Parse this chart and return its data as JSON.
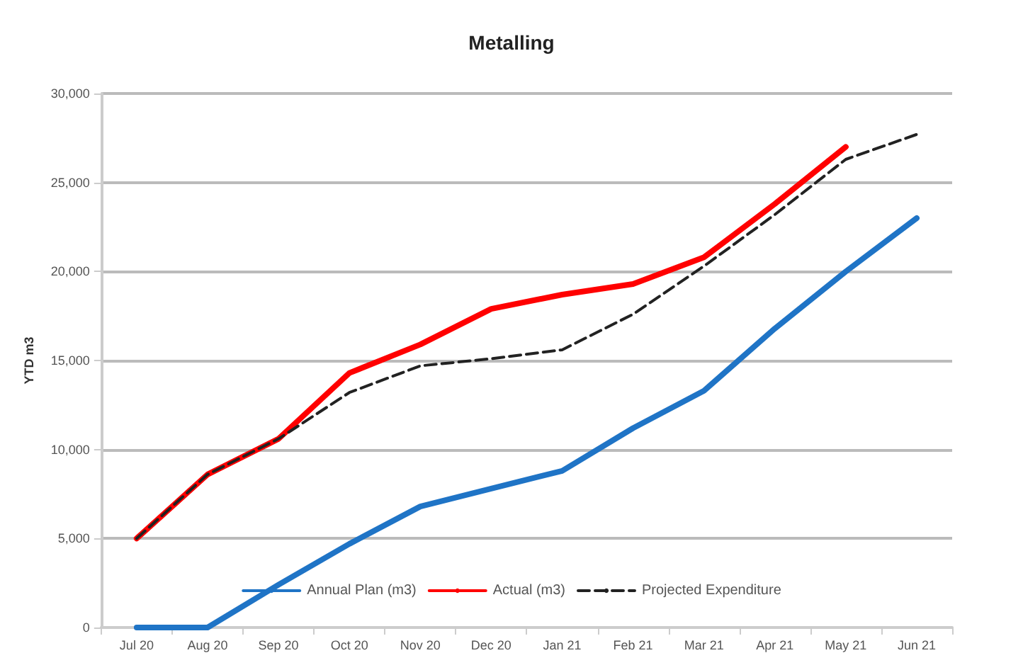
{
  "chart_data": {
    "type": "line",
    "title": "Metalling",
    "ylabel": "YTD m3",
    "categories": [
      "Jul 20",
      "Aug 20",
      "Sep 20",
      "Oct 20",
      "Nov 20",
      "Dec 20",
      "Jan 21",
      "Feb 21",
      "Mar 21",
      "Apr 21",
      "May 21",
      "Jun 21"
    ],
    "series": [
      {
        "name": "Annual Plan (m3)",
        "color": "#1f74c6",
        "values": [
          0,
          0,
          2400,
          4700,
          6800,
          7800,
          8800,
          11200,
          13300,
          16800,
          20000,
          23000
        ]
      },
      {
        "name": "Actual (m3)",
        "color": "#ff0000",
        "values": [
          5000,
          8600,
          10600,
          14300,
          15900,
          17900,
          18700,
          19300,
          20800,
          23800,
          27000,
          null
        ]
      },
      {
        "name": "Projected Expenditure",
        "color": "#222222",
        "line_style": "dashed",
        "values": [
          5000,
          8600,
          10600,
          13200,
          14700,
          15100,
          15600,
          17600,
          20300,
          23200,
          26300,
          27700
        ]
      }
    ],
    "ylim": [
      0,
      30000
    ],
    "yticks": [
      0,
      {
        "value": 5000,
        "label": "5,000"
      },
      {
        "value": 10000,
        "label": "10,000"
      },
      {
        "value": 15000,
        "label": "15,000"
      },
      {
        "value": 20000,
        "label": "20,000"
      },
      {
        "value": 25000,
        "label": "25,000"
      },
      {
        "value": 30000,
        "label": "30,000"
      }
    ],
    "grid": "y",
    "legend": "bottom",
    "marker": "none"
  }
}
